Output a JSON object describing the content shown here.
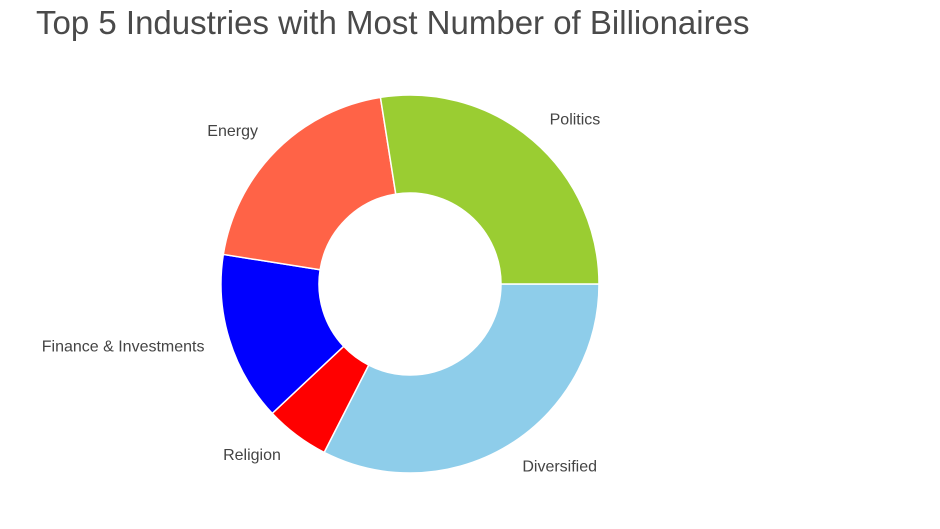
{
  "chart_data": {
    "type": "pie",
    "variant": "donut",
    "title": "Top 5 Industries with Most Number of Billionaires",
    "categories": [
      "Diversified",
      "Religion",
      "Finance & Investments",
      "Energy",
      "Politics"
    ],
    "values": [
      32.5,
      5.5,
      14.5,
      20.0,
      27.5
    ],
    "colors": [
      "#8ecdea",
      "#ff0000",
      "#0000ff",
      "#ff6347",
      "#9acd32"
    ],
    "start_angle_deg": 0,
    "direction": "clockwise-on-screen",
    "legend": "none"
  }
}
